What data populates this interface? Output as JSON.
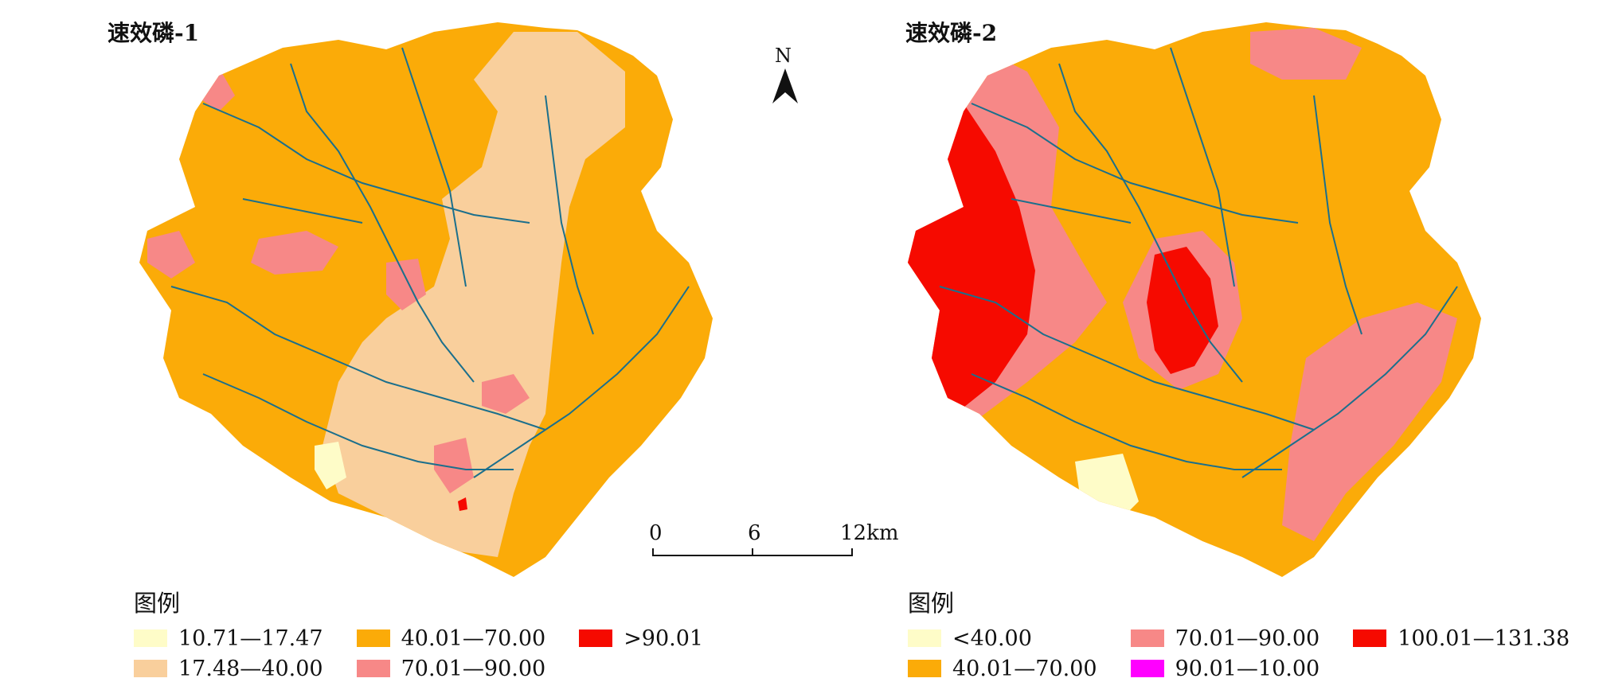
{
  "maps": [
    {
      "title": "速效磷-1",
      "legend": {
        "title": "图例",
        "items": [
          {
            "label": "10.71—17.47",
            "color": "#fefcc8"
          },
          {
            "label": "17.48—40.00",
            "color": "#f9cf9c"
          },
          {
            "label": "40.01—70.00",
            "color": "#fbab08"
          },
          {
            "label": "70.01—90.00",
            "color": "#f78887"
          },
          {
            "label": ">90.01",
            "color": "#f60a00"
          }
        ]
      }
    },
    {
      "title": "速效磷-2",
      "legend": {
        "title": "图例",
        "items": [
          {
            "label": "<40.00",
            "color": "#fefcc8"
          },
          {
            "label": "40.01—70.00",
            "color": "#fbab08"
          },
          {
            "label": "70.01—90.00",
            "color": "#f78887"
          },
          {
            "label": "90.01—10.00",
            "color": "#ff00ff"
          },
          {
            "label": "100.01—131.38",
            "color": "#f60a00"
          }
        ]
      }
    }
  ],
  "north_arrow": {
    "label": "N"
  },
  "scale_bar": {
    "ticks": [
      "0",
      "6",
      "12km"
    ]
  },
  "colors": {
    "river": "#1b6f8c"
  }
}
